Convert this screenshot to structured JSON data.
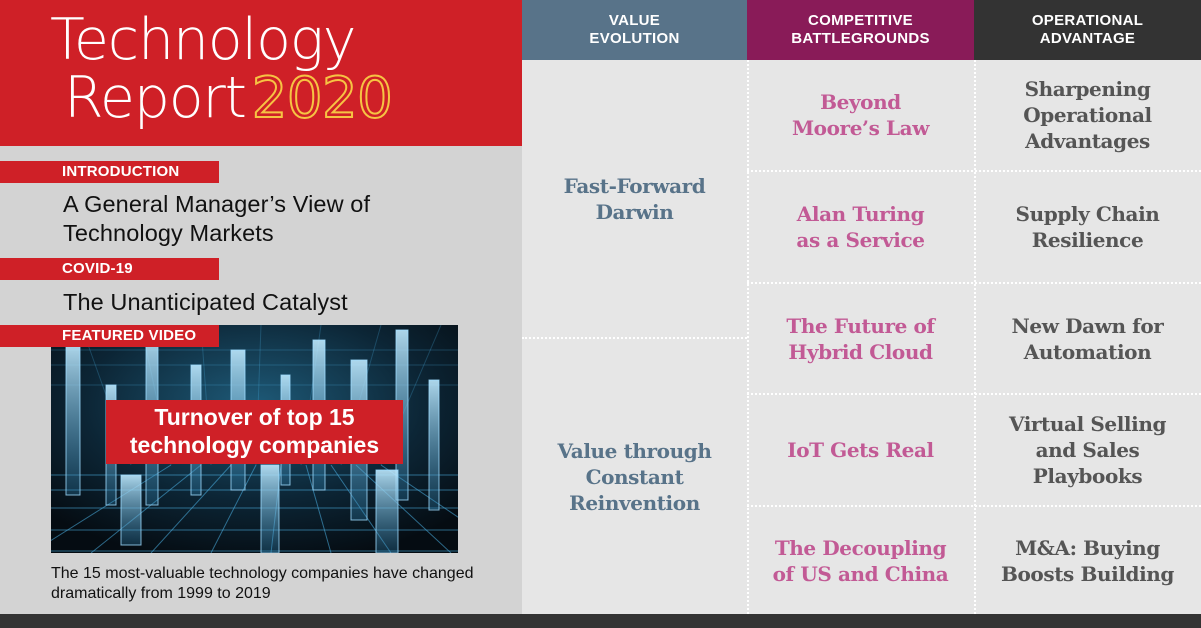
{
  "report": {
    "title_line1": "Technology",
    "title_line2": "Report",
    "year": "2020"
  },
  "sections": {
    "intro": {
      "tag": "Introduction",
      "text": "A General Manager’s View of Technology Markets"
    },
    "covid": {
      "tag": "COVID-19",
      "text": "The Unanticipated Catalyst"
    },
    "video": {
      "tag": "Featured Video",
      "caption": "Turnover of top 15 technology companies",
      "description": "The 15 most-valuable technology companies have changed dramatically from 1999 to 2019"
    }
  },
  "columns": {
    "value": {
      "line1": "Value",
      "line2": "Evolution"
    },
    "comp": {
      "line1": "Competitive",
      "line2": "Battlegrounds"
    },
    "ops": {
      "line1": "Operational",
      "line2": "Advantage"
    }
  },
  "value_items": [
    {
      "line1": "Fast-Forward",
      "line2": "Darwin"
    },
    {
      "line1": "Value through",
      "line2": "Constant",
      "line3": "Reinvention"
    }
  ],
  "comp_items": [
    {
      "line1": "Beyond",
      "line2": "Moore’s Law"
    },
    {
      "line1": "Alan Turing",
      "line2": "as a Service"
    },
    {
      "line1": "The Future of",
      "line2": "Hybrid Cloud"
    },
    {
      "line1": "IoT Gets Real"
    },
    {
      "line1": "The Decoupling",
      "line2": "of US and China"
    }
  ],
  "ops_items": [
    {
      "line1": "Sharpening",
      "line2": "Operational",
      "line3": "Advantages"
    },
    {
      "line1": "Supply Chain",
      "line2": "Resilience"
    },
    {
      "line1": "New Dawn for",
      "line2": "Automation"
    },
    {
      "line1": "Virtual Selling",
      "line2": "and Sales",
      "line3": "Playbooks"
    },
    {
      "line1": "M&A: Buying",
      "line2": "Boosts Building"
    }
  ],
  "colors": {
    "brand_red": "#cf2027",
    "value_blue": "#587389",
    "comp_magenta": "#891b58",
    "comp_text": "#c25a95",
    "ops_dark": "#333333",
    "year_outline": "#f6c343"
  }
}
